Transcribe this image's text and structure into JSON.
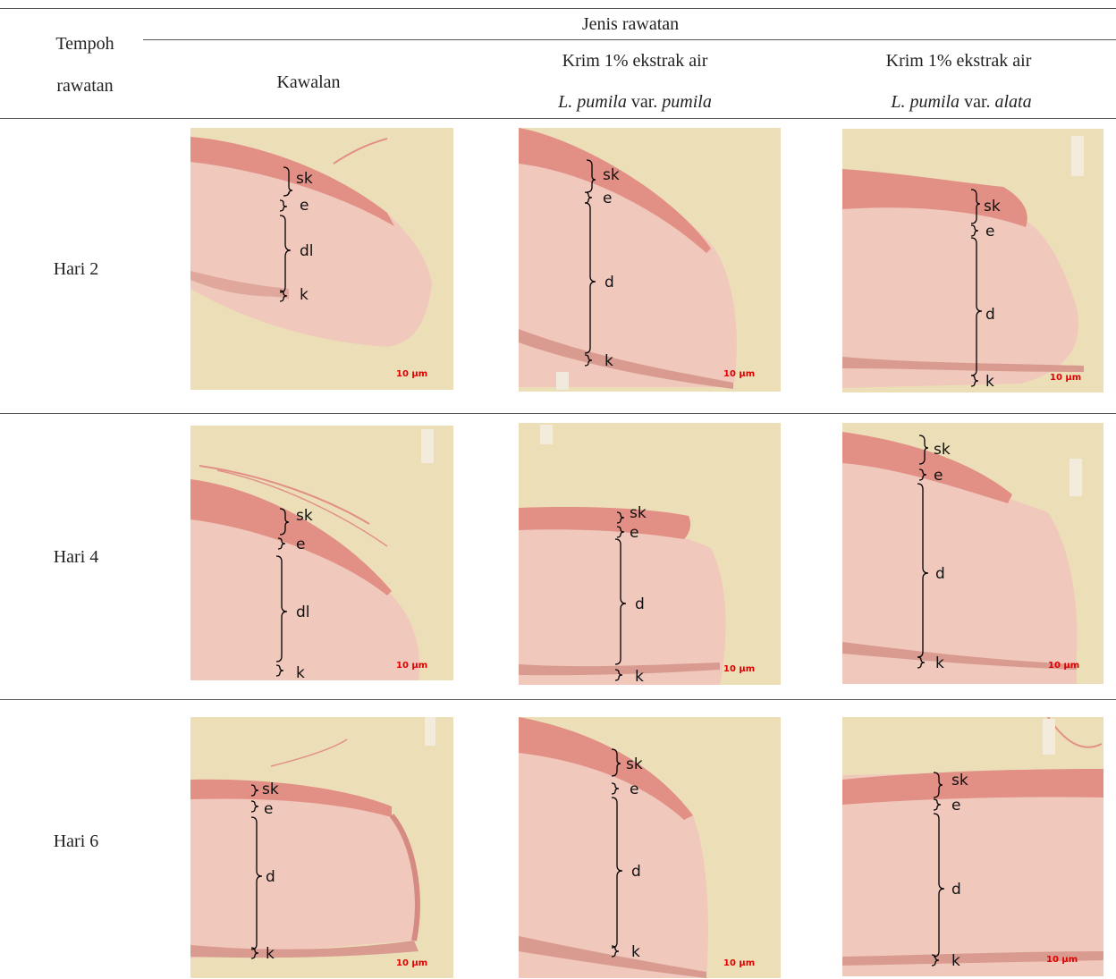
{
  "header": {
    "col0_line1": "Tempoh",
    "col0_line2": "rawatan",
    "group_title": "Jenis rawatan",
    "col1": "Kawalan",
    "col2_line1": "Krim 1% ekstrak air",
    "col2_species": "L. pumila",
    "col2_var": " var. ",
    "col2_varname": "pumila",
    "col3_line1": "Krim 1% ekstrak air",
    "col3_species": "L. pumila",
    "col3_var": " var. ",
    "col3_varname": "alata"
  },
  "rows": [
    {
      "label": "Hari 2"
    },
    {
      "label": "Hari 4"
    },
    {
      "label": "Hari 6"
    }
  ],
  "scale_bar": "10 µm",
  "labels": {
    "sk": "sk",
    "e": "e",
    "dl": "dl",
    "d": "d",
    "k": "k"
  },
  "colors": {
    "tissue_pink": "#f0c8bc",
    "epidermis": "#e28f86",
    "background": "#ecdfb8",
    "scale_text": "#e00000"
  }
}
